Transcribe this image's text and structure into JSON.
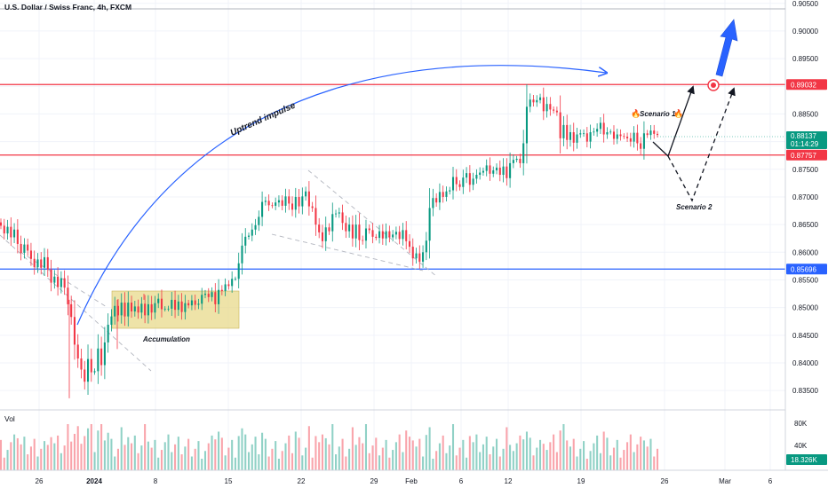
{
  "chart_data": {
    "type": "candlestick",
    "title": "U.S. Dollar / Swiss Franc, 4h, FXCM",
    "price_axis": {
      "ylim": [
        0.8315,
        0.9056
      ],
      "ticks": [
        "0.90500",
        "0.90000",
        "0.89500",
        "0.89000",
        "0.88500",
        "0.88000",
        "0.87500",
        "0.87000",
        "0.86500",
        "0.86000",
        "0.85500",
        "0.85000",
        "0.84500",
        "0.84000",
        "0.83500"
      ]
    },
    "time_axis": {
      "ticks": [
        "26",
        "2024",
        "8",
        "15",
        "22",
        "29",
        "Feb",
        "6",
        "12",
        "19",
        "26",
        "Mar",
        "6"
      ]
    },
    "levels": [
      {
        "name": "resistance",
        "value": 0.89032,
        "label": "0.89032",
        "color": "#f23645"
      },
      {
        "name": "support",
        "value": 0.87757,
        "label": "0.87757",
        "color": "#f23645"
      },
      {
        "name": "support",
        "value": 0.85696,
        "label": "0.85696",
        "color": "#2962ff"
      }
    ],
    "current_price": {
      "label": "0.88137",
      "countdown": "01:14:29",
      "color": "#089981"
    },
    "annotations": {
      "uptrend": "Uptrend impulse",
      "accumulation": "Accumulation",
      "scenario1": "Scenario 1",
      "scenario2": "Scenario 2"
    },
    "volume": {
      "label": "Vol",
      "ticks": [
        "80K",
        "40K"
      ],
      "last_label": "18.326K",
      "color": "#089981"
    },
    "colors": {
      "up": "#089981",
      "down": "#f23645"
    },
    "series_close": [
      0.8648,
      0.8634,
      0.8646,
      0.8627,
      0.8641,
      0.8615,
      0.8599,
      0.8614,
      0.8603,
      0.8588,
      0.8573,
      0.8587,
      0.8572,
      0.8591,
      0.8569,
      0.8545,
      0.8556,
      0.8537,
      0.8553,
      0.8536,
      0.8506,
      0.8483,
      0.8433,
      0.8408,
      0.8388,
      0.8366,
      0.8407,
      0.8383,
      0.8385,
      0.8426,
      0.8396,
      0.8437,
      0.8469,
      0.8484,
      0.8503,
      0.8486,
      0.8509,
      0.8484,
      0.8509,
      0.8493,
      0.8502,
      0.8491,
      0.8507,
      0.8486,
      0.8506,
      0.8491,
      0.8508,
      0.8516,
      0.8497,
      0.8498,
      0.8498,
      0.8514,
      0.8496,
      0.8511,
      0.8492,
      0.8508,
      0.8504,
      0.8513,
      0.8505,
      0.8507,
      0.8523,
      0.8525,
      0.8519,
      0.8528,
      0.8506,
      0.8532,
      0.853,
      0.8542,
      0.8539,
      0.8552,
      0.8552,
      0.858,
      0.8612,
      0.8628,
      0.863,
      0.8641,
      0.8649,
      0.8664,
      0.8691,
      0.8693,
      0.8685,
      0.8684,
      0.869,
      0.8694,
      0.8684,
      0.8701,
      0.8688,
      0.8677,
      0.87,
      0.8683,
      0.8701,
      0.871,
      0.8683,
      0.868,
      0.865,
      0.8636,
      0.862,
      0.8645,
      0.8638,
      0.8669,
      0.867,
      0.8672,
      0.8653,
      0.8638,
      0.865,
      0.8625,
      0.865,
      0.8622,
      0.8621,
      0.8643,
      0.864,
      0.8628,
      0.8626,
      0.8638,
      0.8625,
      0.8638,
      0.8627,
      0.8632,
      0.8637,
      0.8624,
      0.864,
      0.862,
      0.861,
      0.8589,
      0.8598,
      0.8583,
      0.86,
      0.8621,
      0.868,
      0.8698,
      0.869,
      0.8709,
      0.87,
      0.871,
      0.8712,
      0.8736,
      0.8723,
      0.8718,
      0.8735,
      0.8743,
      0.8722,
      0.8733,
      0.874,
      0.8744,
      0.8747,
      0.8757,
      0.8742,
      0.8748,
      0.8753,
      0.874,
      0.8755,
      0.8734,
      0.8761,
      0.8767,
      0.8769,
      0.8761,
      0.8797,
      0.8863,
      0.8876,
      0.8871,
      0.8875,
      0.888,
      0.8855,
      0.8868,
      0.8858,
      0.8856,
      0.8853,
      0.8806,
      0.883,
      0.8803,
      0.8817,
      0.8798,
      0.8813,
      0.8815,
      0.8815,
      0.88,
      0.8817,
      0.8818,
      0.8823,
      0.8834,
      0.8813,
      0.8817,
      0.8818,
      0.8805,
      0.8813,
      0.881,
      0.8809,
      0.8806,
      0.88,
      0.8816,
      0.8797,
      0.8787,
      0.8815,
      0.8812,
      0.882,
      0.8814,
      0.8812
    ]
  }
}
